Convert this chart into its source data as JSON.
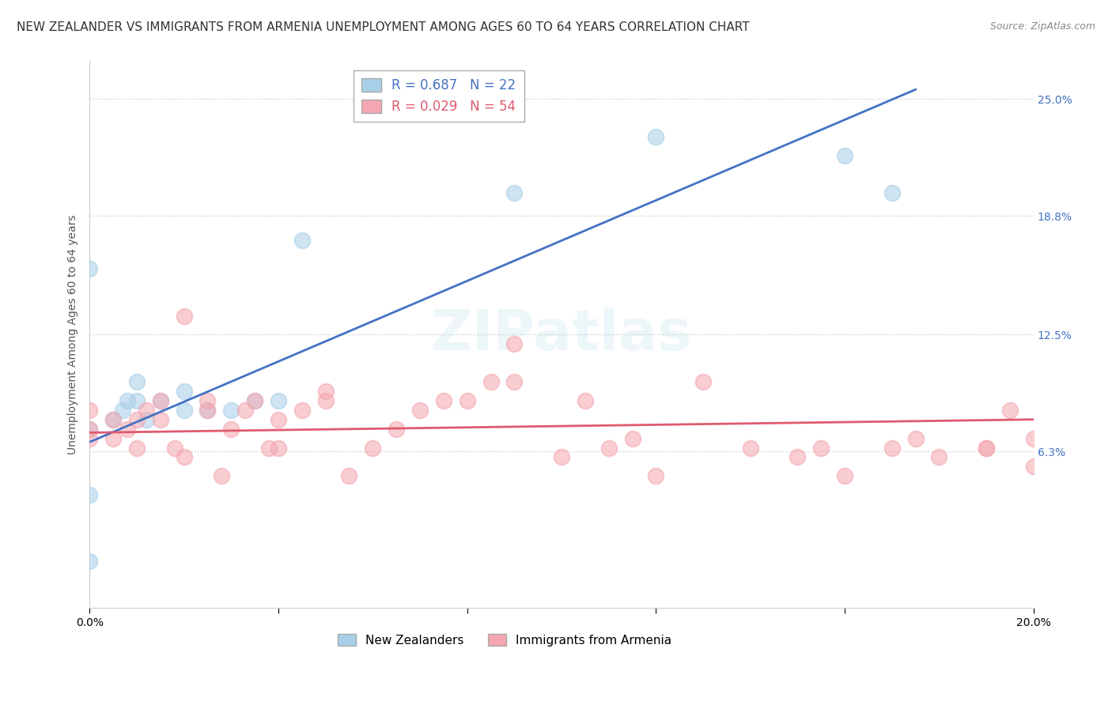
{
  "title": "NEW ZEALANDER VS IMMIGRANTS FROM ARMENIA UNEMPLOYMENT AMONG AGES 60 TO 64 YEARS CORRELATION CHART",
  "source": "Source: ZipAtlas.com",
  "ylabel": "Unemployment Among Ages 60 to 64 years",
  "xlim": [
    0.0,
    0.2
  ],
  "ylim": [
    -0.02,
    0.27
  ],
  "xticks": [
    0.0,
    0.2
  ],
  "xticklabels": [
    "0.0%",
    "20.0%"
  ],
  "ytick_positions": [
    0.063,
    0.125,
    0.188,
    0.25
  ],
  "ytick_labels": [
    "6.3%",
    "12.5%",
    "18.8%",
    "25.0%"
  ],
  "blue_R": 0.687,
  "blue_N": 22,
  "pink_R": 0.029,
  "pink_N": 54,
  "blue_color": "#a8cfe8",
  "pink_color": "#f4a7b0",
  "blue_line_color": "#4472c4",
  "pink_line_color": "#e05a6e",
  "blue_points_x": [
    0.0,
    0.0,
    0.0,
    0.0,
    0.005,
    0.007,
    0.008,
    0.01,
    0.01,
    0.012,
    0.015,
    0.02,
    0.02,
    0.025,
    0.03,
    0.035,
    0.04,
    0.045,
    0.09,
    0.12,
    0.16,
    0.17
  ],
  "blue_points_y": [
    0.005,
    0.04,
    0.075,
    0.16,
    0.08,
    0.085,
    0.09,
    0.09,
    0.1,
    0.08,
    0.09,
    0.085,
    0.095,
    0.085,
    0.085,
    0.09,
    0.09,
    0.175,
    0.2,
    0.23,
    0.22,
    0.2
  ],
  "pink_points_x": [
    0.0,
    0.0,
    0.0,
    0.005,
    0.005,
    0.008,
    0.01,
    0.01,
    0.012,
    0.015,
    0.015,
    0.018,
    0.02,
    0.02,
    0.025,
    0.025,
    0.028,
    0.03,
    0.033,
    0.035,
    0.038,
    0.04,
    0.04,
    0.045,
    0.05,
    0.05,
    0.055,
    0.06,
    0.065,
    0.07,
    0.075,
    0.08,
    0.085,
    0.09,
    0.09,
    0.1,
    0.105,
    0.11,
    0.115,
    0.12,
    0.13,
    0.14,
    0.15,
    0.155,
    0.16,
    0.17,
    0.175,
    0.18,
    0.19,
    0.19,
    0.195,
    0.2,
    0.2,
    0.21
  ],
  "pink_points_y": [
    0.07,
    0.075,
    0.085,
    0.07,
    0.08,
    0.075,
    0.065,
    0.08,
    0.085,
    0.08,
    0.09,
    0.065,
    0.06,
    0.135,
    0.085,
    0.09,
    0.05,
    0.075,
    0.085,
    0.09,
    0.065,
    0.065,
    0.08,
    0.085,
    0.09,
    0.095,
    0.05,
    0.065,
    0.075,
    0.085,
    0.09,
    0.09,
    0.1,
    0.1,
    0.12,
    0.06,
    0.09,
    0.065,
    0.07,
    0.05,
    0.1,
    0.065,
    0.06,
    0.065,
    0.05,
    0.065,
    0.07,
    0.06,
    0.065,
    0.065,
    0.085,
    0.07,
    0.055,
    0.055
  ],
  "blue_line_x": [
    0.0,
    0.175
  ],
  "blue_line_y": [
    0.068,
    0.255
  ],
  "pink_line_x": [
    0.0,
    0.2
  ],
  "pink_line_y": [
    0.073,
    0.08
  ],
  "grid_color": "#cccccc",
  "background_color": "#ffffff",
  "title_fontsize": 11,
  "axis_fontsize": 10,
  "tick_fontsize": 10,
  "tick_color": "#4472c4"
}
